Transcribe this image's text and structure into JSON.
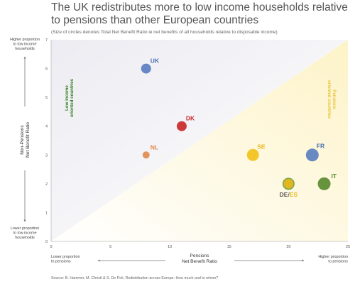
{
  "title": "The UK redistributes more to low income households relative to pensions than other European countries",
  "subtitle": "(Size of circles denotes Total Net Benefit Ratio ie net benefits of all households relative to disposable income)",
  "source": "Source: B. Hammer, M. Christl & S. De Poli, Redistribution across Europe: How much and to whom?",
  "chart_data": {
    "type": "scatter",
    "xlabel": [
      "Pensions",
      "Net Benefit Ratio"
    ],
    "ylabel": [
      "Non-Pensions",
      "Net Benefit Ratio"
    ],
    "xlim": [
      0,
      25
    ],
    "ylim": [
      0,
      7
    ],
    "x_ticks": [
      0,
      5,
      10,
      15,
      20,
      25
    ],
    "y_ticks": [
      0,
      1,
      2,
      3,
      4,
      5,
      6,
      7
    ],
    "grid": false,
    "points": [
      {
        "label": "UK",
        "x": 8,
        "y": 6,
        "size": 7,
        "color": "#5b7fbf",
        "label_color": "#4a6fb0"
      },
      {
        "label": "DK",
        "x": 11,
        "y": 4,
        "size": 7,
        "color": "#c8282a",
        "label_color": "#c8282a"
      },
      {
        "label": "NL",
        "x": 8,
        "y": 3,
        "size": 5,
        "color": "#e08b4e",
        "label_color": "#e08b4e"
      },
      {
        "label": "SE",
        "x": 17,
        "y": 3,
        "size": 8.5,
        "color": "#f2c21b",
        "label_color": "#e8b820"
      },
      {
        "label": "FR",
        "x": 22,
        "y": 3,
        "size": 9,
        "color": "#5b7fbf",
        "label_color": "#4a6fb0"
      },
      {
        "label": "DE",
        "x": 20,
        "y": 2,
        "size": 8.5,
        "color": "#6e9a3c",
        "label_color": "#555555"
      },
      {
        "label": "ES",
        "x": 20,
        "y": 2,
        "size": 7,
        "color": "#e8b820",
        "label_color": "#e8b820"
      },
      {
        "label": "IT",
        "x": 23,
        "y": 2,
        "size": 9,
        "color": "#5a8a30",
        "label_color": "#5a8a30"
      }
    ],
    "zones": {
      "upper": {
        "label": [
          "Low income",
          "oriented countries"
        ],
        "color": "#2e7d1e"
      },
      "lower": {
        "label": [
          "Pensions",
          "oriented countries"
        ],
        "color": "#e8c53a"
      }
    },
    "y_axis_notes": {
      "top": [
        "Higher proportion",
        "to low income",
        "households"
      ],
      "bottom": [
        "Lower proportion",
        "to low income",
        "households"
      ]
    },
    "x_axis_notes": {
      "left": [
        "Lower proportion",
        "to pensions"
      ],
      "right": [
        "Higher proportion",
        "to pensions"
      ]
    }
  }
}
